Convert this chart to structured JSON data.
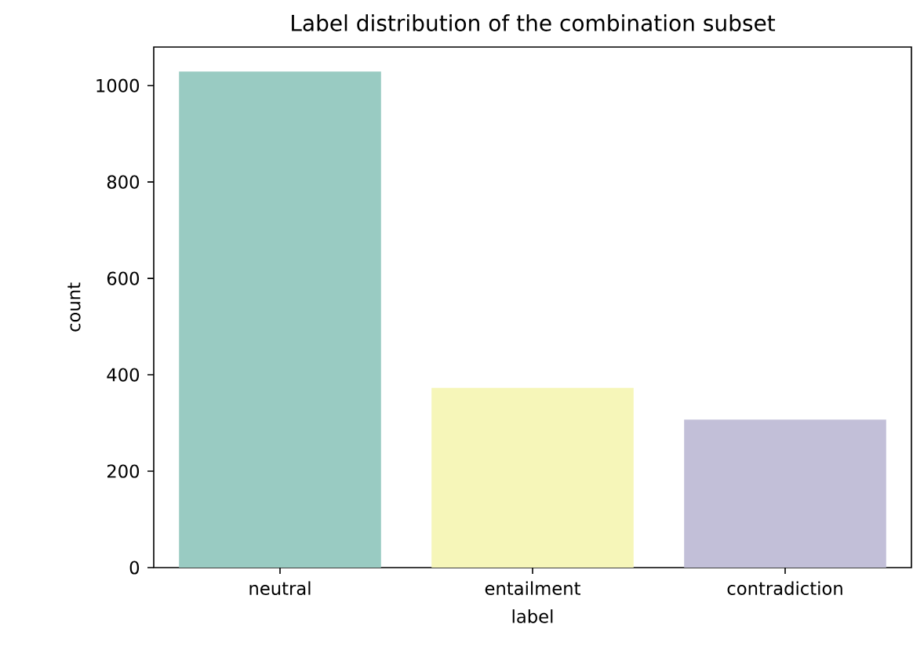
{
  "chart_data": {
    "type": "bar",
    "title": "Label distribution of the combination subset",
    "xlabel": "label",
    "ylabel": "count",
    "categories": [
      "neutral",
      "entailment",
      "contradiction"
    ],
    "values": [
      1029,
      373,
      307
    ],
    "colors": [
      "#99cbc2",
      "#f6f6b9",
      "#c2bfd8"
    ],
    "ylim": [
      0,
      1080
    ],
    "yticks": [
      0,
      200,
      400,
      600,
      800,
      1000
    ],
    "grid": false
  }
}
